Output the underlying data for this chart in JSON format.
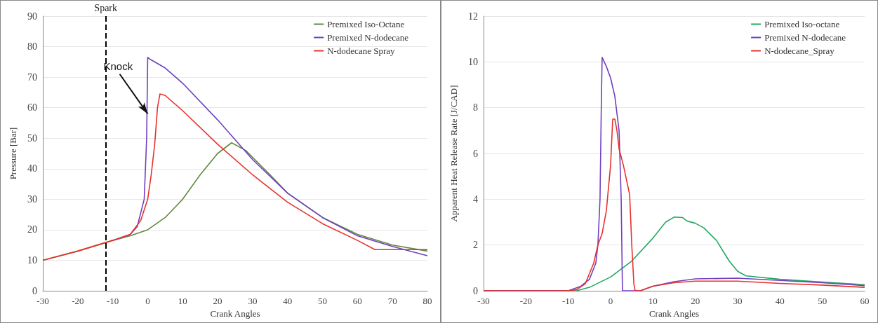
{
  "chart_data": [
    {
      "type": "line",
      "xlabel": "Crank Angles",
      "ylabel": "Pressure [Bar]",
      "xlim": [
        -30,
        80
      ],
      "xticks": [
        -30,
        -20,
        -10,
        0,
        10,
        20,
        30,
        40,
        50,
        60,
        70,
        80
      ],
      "ylim": [
        0,
        90
      ],
      "yticks": [
        0,
        10,
        20,
        30,
        40,
        50,
        60,
        70,
        80,
        90
      ],
      "grid": "y",
      "legend": "top right",
      "marker": "none",
      "line_style": "solid",
      "series": [
        {
          "name": "Premixed Iso-Octane",
          "color": "#5f8a3c",
          "x": [
            -30,
            -20,
            -10,
            -5,
            0,
            5,
            10,
            15,
            20,
            24,
            28,
            35,
            40,
            50,
            60,
            70,
            80
          ],
          "values": [
            10,
            13,
            16.5,
            18,
            20,
            24,
            30,
            38,
            45,
            48.5,
            46,
            38,
            32,
            24,
            18.5,
            15,
            13
          ]
        },
        {
          "name": "Premixed N-dodecane",
          "color": "#7040c0",
          "x": [
            -10,
            -5,
            -3,
            -1,
            -0.3,
            0,
            0.5,
            5,
            10,
            20,
            30,
            40,
            50,
            60,
            70,
            80
          ],
          "values": [
            16.5,
            18.5,
            21,
            30,
            50,
            76.5,
            76,
            73,
            68,
            56,
            43,
            32,
            24,
            18,
            14.5,
            11.5
          ]
        },
        {
          "name": "N-dodecane Spray",
          "color": "#e8312c",
          "x": [
            -30,
            -20,
            -10,
            -5,
            -2,
            0,
            1,
            2,
            2.8,
            3.5,
            5,
            10,
            20,
            30,
            40,
            50,
            60,
            65,
            80
          ],
          "values": [
            10,
            13,
            16.5,
            18.5,
            23,
            30,
            38,
            48,
            60,
            64.5,
            64,
            59,
            48,
            38,
            29,
            22,
            16.5,
            13.5,
            13.5
          ]
        }
      ],
      "ref_lines": [
        {
          "axis": "x",
          "value": -12,
          "label": "Spark",
          "color": "#000000",
          "line_style": "dashed"
        }
      ],
      "annotations": [
        {
          "text": "Knock",
          "x": 0,
          "y": 58
        }
      ]
    },
    {
      "type": "line",
      "xlabel": "Crank Angles",
      "ylabel": "Apparent Heat Release Rate [J/CAD]",
      "xlim": [
        -30,
        60
      ],
      "xticks": [
        -30,
        -20,
        -10,
        0,
        10,
        20,
        30,
        40,
        50,
        60
      ],
      "ylim": [
        0,
        12
      ],
      "yticks": [
        0,
        2,
        4,
        6,
        8,
        10,
        12
      ],
      "grid": "y",
      "legend": "top right",
      "marker": "none",
      "line_style": "solid",
      "series": [
        {
          "name": "Premixed Iso-octane",
          "color": "#22a862",
          "x": [
            -30,
            -8,
            -5,
            0,
            5,
            10,
            13,
            15,
            17,
            18,
            20,
            22,
            25,
            28,
            30,
            32,
            40,
            50,
            60
          ],
          "values": [
            0,
            0,
            0.15,
            0.6,
            1.3,
            2.3,
            3,
            3.22,
            3.2,
            3.05,
            2.95,
            2.75,
            2.2,
            1.3,
            0.85,
            0.65,
            0.5,
            0.38,
            0.27
          ]
        },
        {
          "name": "Premixed N-dodecane",
          "color": "#7040c0",
          "x": [
            -30,
            -10,
            -7,
            -5,
            -3.5,
            -3,
            -2.5,
            -2.2,
            -2,
            -1,
            0,
            1,
            2,
            2.5,
            2.8,
            7,
            10,
            15,
            20,
            30,
            40,
            50,
            60
          ],
          "values": [
            0,
            0,
            0.2,
            0.5,
            1.2,
            2,
            4,
            8,
            10.2,
            9.8,
            9.3,
            8.5,
            7,
            4,
            0,
            0,
            0.2,
            0.4,
            0.52,
            0.55,
            0.45,
            0.35,
            0.22
          ]
        },
        {
          "name": "N-dodecane_Spray",
          "color": "#e8312c",
          "x": [
            -30,
            -10,
            -8,
            -6,
            -4,
            -3,
            -2,
            -1,
            0,
            0.5,
            1,
            1.5,
            2,
            3,
            4.5,
            5,
            5.5,
            5.8,
            7,
            10,
            15,
            20,
            30,
            40,
            50,
            60
          ],
          "values": [
            0,
            0,
            0.05,
            0.3,
            1.2,
            2,
            2.5,
            3.5,
            5.5,
            7.5,
            7.5,
            7,
            6.2,
            5.5,
            4.2,
            2,
            0.3,
            0,
            0,
            0.2,
            0.35,
            0.42,
            0.42,
            0.32,
            0.25,
            0.15
          ]
        }
      ]
    }
  ]
}
